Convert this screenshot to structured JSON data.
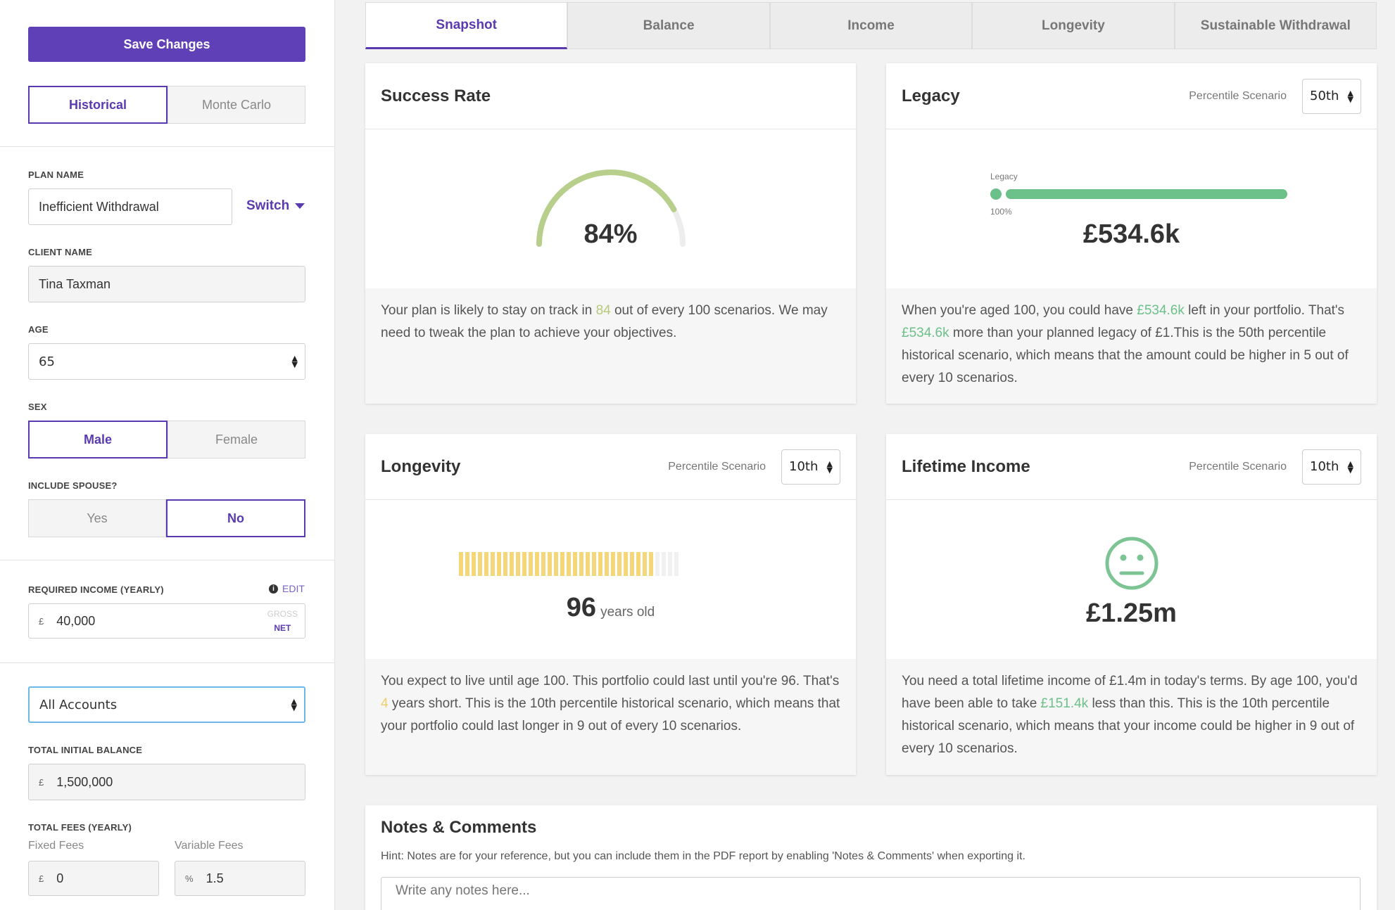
{
  "sidebar": {
    "save_label": "Save Changes",
    "mode": {
      "options": [
        "Historical",
        "Monte Carlo"
      ],
      "selected": "Historical"
    },
    "plan_name": {
      "label": "PLAN NAME",
      "value": "Inefficient Withdrawal",
      "switch_label": "Switch"
    },
    "client_name": {
      "label": "CLIENT NAME",
      "value": "Tina Taxman"
    },
    "age": {
      "label": "AGE",
      "value": "65"
    },
    "sex": {
      "label": "SEX",
      "options": [
        "Male",
        "Female"
      ],
      "selected": "Male"
    },
    "spouse": {
      "label": "INCLUDE SPOUSE?",
      "options": [
        "Yes",
        "No"
      ],
      "selected": "No"
    },
    "required_income": {
      "label": "REQUIRED INCOME (YEARLY)",
      "edit_label": "EDIT",
      "currency": "£",
      "value": "40,000",
      "gross": "GROSS",
      "net": "NET"
    },
    "accounts": {
      "value": "All Accounts"
    },
    "total_initial_balance": {
      "label": "TOTAL INITIAL BALANCE",
      "currency": "£",
      "value": "1,500,000"
    },
    "total_fees": {
      "label": "TOTAL FEES (YEARLY)",
      "fixed_label": "Fixed Fees",
      "fixed_currency": "£",
      "fixed_value": "0",
      "variable_label": "Variable Fees",
      "variable_unit": "%",
      "variable_value": "1.5"
    }
  },
  "tabs": [
    "Snapshot",
    "Balance",
    "Income",
    "Longevity",
    "Sustainable Withdrawal"
  ],
  "active_tab": "Snapshot",
  "success_rate": {
    "title": "Success Rate",
    "value": "84%",
    "gauge_fraction": 0.84,
    "text_a": "Your plan is likely to stay on track in ",
    "hl": "84",
    "text_b": " out of every 100 scenarios. We may need to tweak the plan to achieve your objectives."
  },
  "legacy": {
    "title": "Legacy",
    "percentile_label": "Percentile Scenario",
    "percentile_value": "50th",
    "bar_label": "Legacy",
    "bar_pct_label": "100%",
    "bar_fraction": 1.0,
    "value": "£534.6k",
    "text_a": "When you're aged 100, you could have ",
    "hl1": "£534.6k",
    "text_b": " left in your portfolio. That's ",
    "hl2": "£534.6k",
    "text_c": " more than your planned legacy of £1.This is the 50th percentile historical scenario, which means that the amount could be higher in 5 out of every 10 scenarios."
  },
  "longevity": {
    "title": "Longevity",
    "percentile_label": "Percentile Scenario",
    "percentile_value": "10th",
    "age_value": "96",
    "age_unit": "years old",
    "bars_filled": 31,
    "bars_total": 35,
    "text_a": "You expect to live until age 100. This portfolio could last until you're 96. That's ",
    "hl": "4",
    "text_b": " years short. This is the 10th percentile historical scenario, which means that your portfolio could last longer in 9 out of every 10 scenarios."
  },
  "lifetime_income": {
    "title": "Lifetime Income",
    "percentile_label": "Percentile Scenario",
    "percentile_value": "10th",
    "value": "£1.25m",
    "text_a": "You need a total lifetime income of £1.4m in today's terms. By age 100, you'd have been able to take ",
    "hl": "£151.4k",
    "text_b": " less than this. This is the 10th percentile historical scenario, which means that your income could be higher in 9 out of every 10 scenarios."
  },
  "notes": {
    "title": "Notes & Comments",
    "hint": "Hint: Notes are for your reference, but you can include them in the PDF report by enabling 'Notes & Comments' when exporting it.",
    "placeholder": "Write any notes here..."
  },
  "colors": {
    "accent": "#5a3ab0",
    "gauge": "#b7cf8a",
    "legacy_bar": "#6cc08a",
    "longevity_bar": "#f5d77a",
    "face": "#7cc494"
  }
}
